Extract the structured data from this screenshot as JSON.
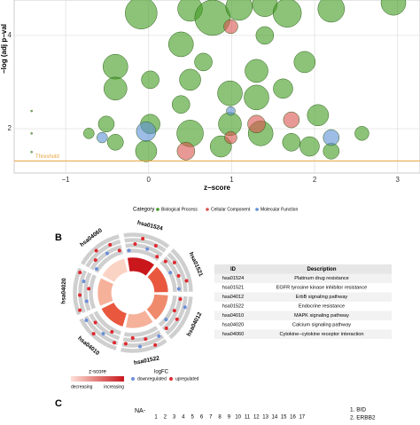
{
  "chart_data": {
    "type": "scatter",
    "x_label": "z−score",
    "y_label": "−log (adj p−val",
    "xlim": [
      -1.62,
      3.27
    ],
    "ylim": [
      1.05,
      4.76
    ],
    "xticks": [
      {
        "value": -1,
        "label": "−1"
      },
      0,
      1,
      2,
      3
    ],
    "yticks": [
      2,
      4
    ],
    "grid": true,
    "threshold": {
      "value": 1.31,
      "label": "Threshold",
      "color": "#e8a33d"
    },
    "legend_title": "Category",
    "series": [
      {
        "name": "Biological Process",
        "color": "#3f9b1f",
        "x": [
          -0.09,
          0.5,
          0.77,
          1.09,
          1.4,
          1.67,
          2.2,
          2.95,
          0.39,
          0.02,
          -0.4,
          -0.4,
          0.5,
          0.98,
          1.3,
          1.3,
          1.62,
          1.88,
          2.04,
          0.5,
          0.98,
          0.02,
          -0.51,
          -0.4,
          0.87,
          1.35,
          1.94,
          1.72,
          2.2,
          2.57,
          0.39,
          0.66,
          -0.72,
          -0.03,
          1.4,
          -1.41,
          -1.41,
          -1.41
        ],
        "values": [
          4.48,
          4.57,
          4.38,
          4.61,
          4.67,
          4.48,
          4.57,
          4.7,
          3.81,
          3.05,
          3.33,
          2.86,
          3.05,
          2.76,
          3.24,
          2.67,
          2.86,
          3.43,
          2.29,
          1.9,
          2.1,
          2.1,
          2.1,
          1.71,
          1.62,
          1.9,
          1.62,
          1.71,
          1.52,
          1.9,
          2.52,
          3.43,
          1.9,
          1.52,
          4.0,
          2.38,
          1.9,
          1.5
        ],
        "sizes": [
          18,
          14,
          20,
          15,
          14,
          16,
          15,
          14,
          14,
          10,
          14,
          13,
          12,
          14,
          13,
          14,
          11,
          12,
          12,
          15,
          13,
          11,
          9,
          9,
          12,
          14,
          11,
          10,
          9,
          8,
          10,
          10,
          6,
          12,
          10,
          1,
          1,
          1
        ]
      },
      {
        "name": "Cellular Component",
        "color": "#d9534f",
        "x": [
          0.99,
          1.72,
          1.3,
          0.45,
          0.99
        ],
        "values": [
          4.19,
          2.19,
          2.1,
          1.52,
          1.81
        ],
        "sizes": [
          8,
          9,
          10,
          10,
          7
        ]
      },
      {
        "name": "Molecular Function",
        "color": "#5b8fd6",
        "x": [
          -0.03,
          -0.56,
          2.2,
          0.99
        ],
        "values": [
          1.94,
          1.81,
          1.81,
          2.38
        ],
        "sizes": [
          11,
          6,
          9,
          5
        ]
      }
    ]
  },
  "panel_b": {
    "label": "B",
    "circle_labels": [
      "hsa01524",
      "hsa01521",
      "hsa04012",
      "hsa01522",
      "hsa04010",
      "hsa04020",
      "hsa04060"
    ],
    "table": {
      "header": [
        "ID",
        "Description"
      ],
      "rows": [
        [
          "hsa01524",
          "Platinum drug resistance"
        ],
        [
          "hsa01521",
          "EGFR tyrosine kinase inhibitor resistance"
        ],
        [
          "hsa04012",
          "ErbB signaling pathway"
        ],
        [
          "hsa01522",
          "Endocrine resistance"
        ],
        [
          "hsa04010",
          "MAPK signaling pathway"
        ],
        [
          "hsa04020",
          "Calcium signaling pathway"
        ],
        [
          "hsa04060",
          "Cytokine−cytokine receptor interaction"
        ]
      ]
    },
    "legend": {
      "zscore_title": "z-score",
      "decreasing": "decreasing",
      "increasing": "increasing",
      "logfc_title": "logFC",
      "down": "downregulated",
      "up": "upregulated"
    }
  },
  "panel_c": {
    "label": "C",
    "na": "NA-",
    "numbers": [
      1,
      2,
      3,
      4,
      5,
      6,
      7,
      8,
      9,
      10,
      11,
      12,
      13,
      14,
      15,
      16,
      17
    ],
    "genes": [
      "1. BID",
      "2. ERBB2"
    ]
  }
}
